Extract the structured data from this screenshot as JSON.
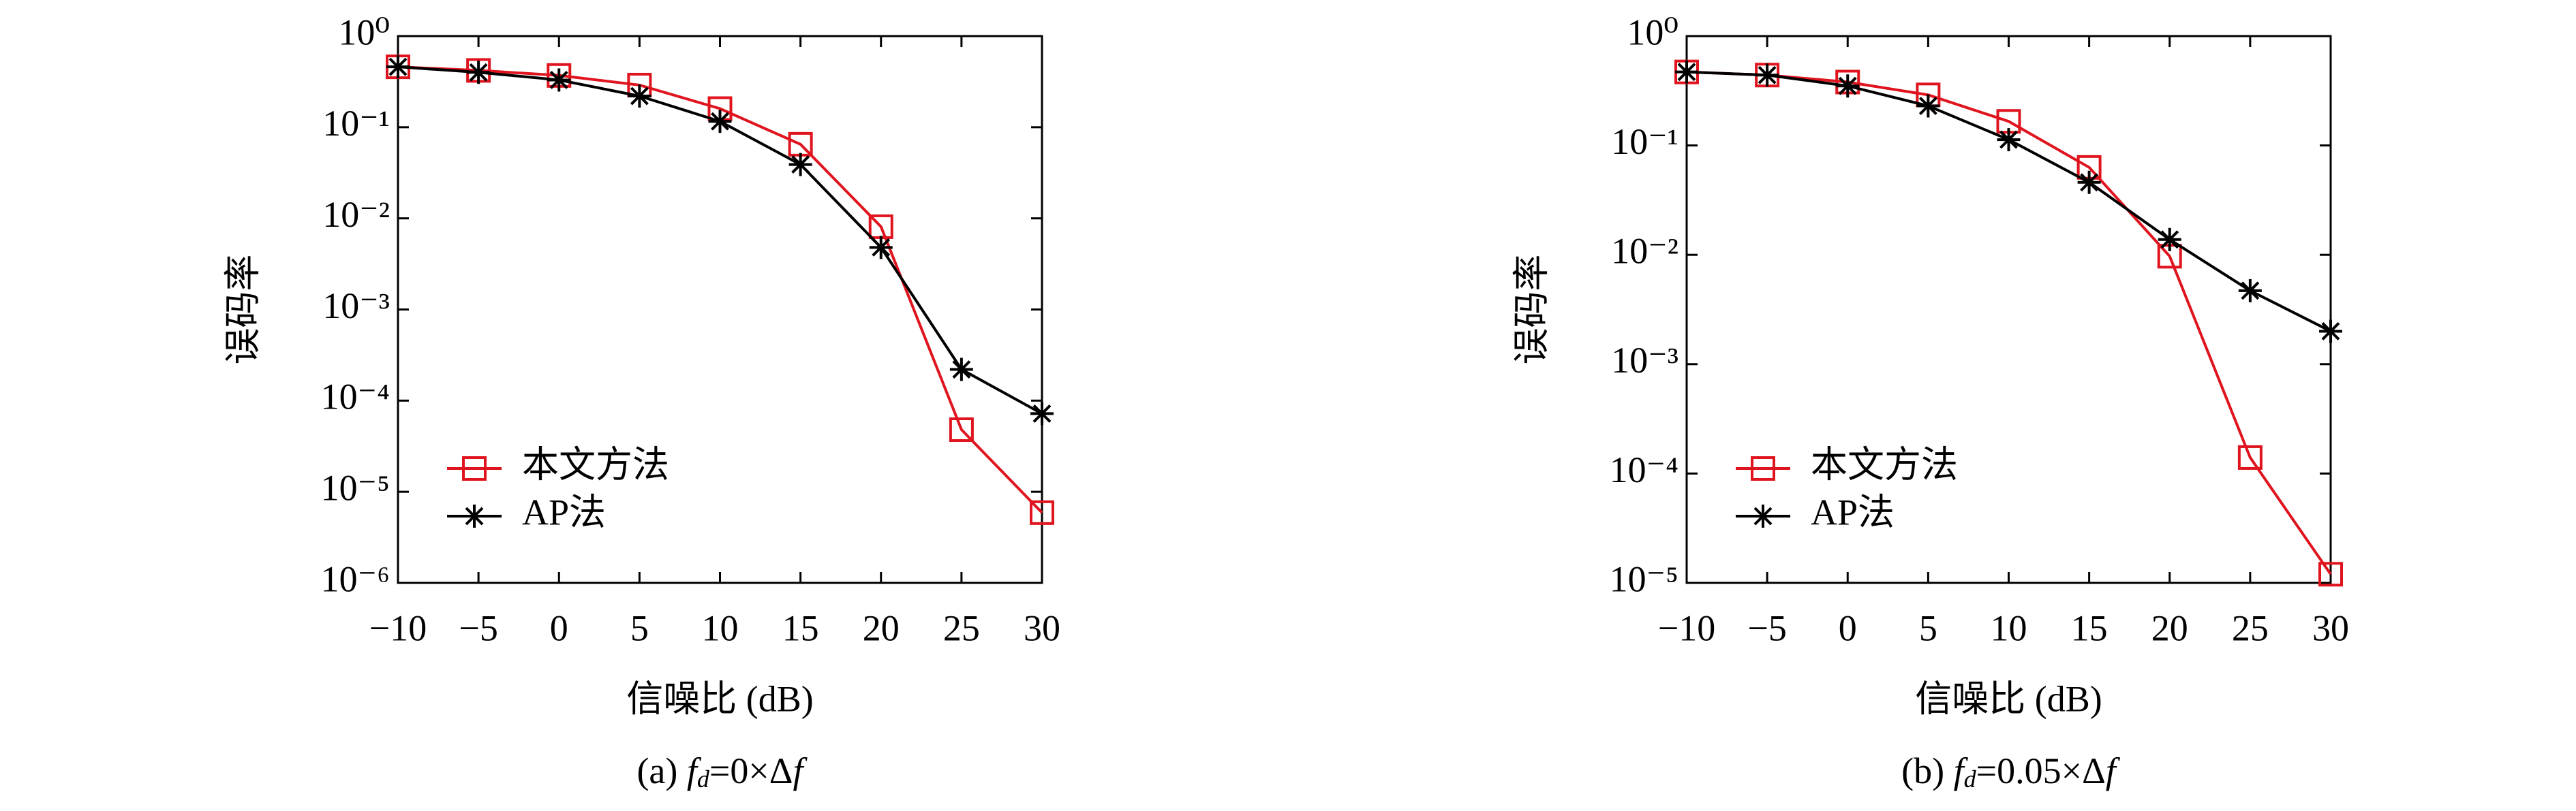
{
  "chart_data": [
    {
      "type": "line",
      "caption": [
        "(a) ",
        "f",
        "d",
        "=0×Δ",
        "f"
      ],
      "xlabel": "信噪比 (dB)",
      "ylabel": "误码率",
      "x": [
        -10,
        -5,
        0,
        5,
        10,
        15,
        20,
        25,
        30
      ],
      "xlim": [
        -10,
        30
      ],
      "xticks": [
        {
          "value": -10,
          "label": "−10"
        },
        {
          "value": -5,
          "label": "−5"
        },
        0,
        5,
        10,
        15,
        20,
        25,
        30
      ],
      "ylim": [
        1e-06,
        1
      ],
      "yscale": "log",
      "yticks": [
        {
          "value": 1e-06,
          "label": "10⁻⁶"
        },
        {
          "value": 1e-05,
          "label": "10⁻⁵"
        },
        {
          "value": 0.0001,
          "label": "10⁻⁴"
        },
        {
          "value": 0.001,
          "label": "10⁻³"
        },
        {
          "value": 0.01,
          "label": "10⁻²"
        },
        {
          "value": 0.1,
          "label": "10⁻¹"
        },
        {
          "value": 1,
          "label": "10⁰"
        }
      ],
      "legend": "lower left",
      "series": [
        {
          "name": "本文方法",
          "color": "#e0141e",
          "marker": "square",
          "values": [
            0.46,
            0.42,
            0.37,
            0.29,
            0.16,
            0.065,
            0.0081,
            4.8e-05,
            5.9e-06
          ]
        },
        {
          "name": "AP法",
          "color": "#000000",
          "marker": "star",
          "values": [
            0.46,
            0.4,
            0.33,
            0.22,
            0.116,
            0.039,
            0.0048,
            0.00022,
            7.2e-05
          ]
        }
      ]
    },
    {
      "type": "line",
      "caption": [
        "(b) ",
        "f",
        "d",
        "=0.05×Δ",
        "f"
      ],
      "xlabel": "信噪比 (dB)",
      "ylabel": "误码率",
      "x": [
        -10,
        -5,
        0,
        5,
        10,
        15,
        20,
        25,
        30
      ],
      "xlim": [
        -10,
        30
      ],
      "xticks": [
        {
          "value": -10,
          "label": "−10"
        },
        {
          "value": -5,
          "label": "−5"
        },
        0,
        5,
        10,
        15,
        20,
        25,
        30
      ],
      "ylim": [
        1e-05,
        1
      ],
      "yscale": "log",
      "yticks": [
        {
          "value": 1e-05,
          "label": "10⁻⁵"
        },
        {
          "value": 0.0001,
          "label": "10⁻⁴"
        },
        {
          "value": 0.001,
          "label": "10⁻³"
        },
        {
          "value": 0.01,
          "label": "10⁻²"
        },
        {
          "value": 0.1,
          "label": "10⁻¹"
        },
        {
          "value": 1,
          "label": "10⁰"
        }
      ],
      "legend": "lower left",
      "series": [
        {
          "name": "本文方法",
          "color": "#e0141e",
          "marker": "square",
          "values": [
            0.47,
            0.44,
            0.38,
            0.29,
            0.166,
            0.063,
            0.0097,
            0.00014,
            1.2e-05
          ]
        },
        {
          "name": "AP法",
          "color": "#000000",
          "marker": "star",
          "values": [
            0.47,
            0.44,
            0.35,
            0.23,
            0.113,
            0.046,
            0.0138,
            0.0047,
            0.002
          ]
        }
      ]
    }
  ]
}
